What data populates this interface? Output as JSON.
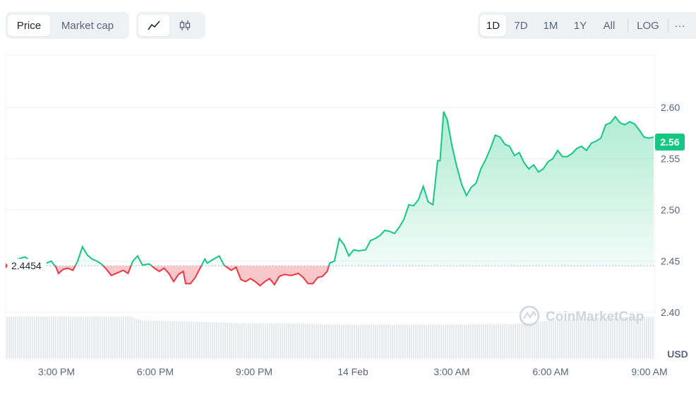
{
  "toolbar": {
    "metric_tabs": [
      {
        "label": "Price",
        "active": true
      },
      {
        "label": "Market cap",
        "active": false
      }
    ],
    "chart_types": [
      {
        "icon": "line-chart-icon",
        "active": true
      },
      {
        "icon": "candlestick-icon",
        "active": false
      }
    ],
    "ranges": [
      {
        "label": "1D",
        "active": true
      },
      {
        "label": "7D",
        "active": false
      },
      {
        "label": "1M",
        "active": false
      },
      {
        "label": "1Y",
        "active": false
      },
      {
        "label": "All",
        "active": false
      }
    ],
    "log_label": "LOG",
    "more_label": "···"
  },
  "watermark": "CoinMarketCap",
  "colors": {
    "up": "#16c784",
    "down": "#ea3943",
    "grid": "#eff2f5",
    "volume": "#e5e8ed"
  },
  "chart_data": {
    "type": "line",
    "currency_label": "USD",
    "baseline_value": 2.4454,
    "baseline_label": "2.4454",
    "current_value": 2.56,
    "current_label": "2.56",
    "ylim": [
      2.39,
      2.65
    ],
    "y_ticks": [
      "2.40",
      "2.45",
      "2.50",
      "2.55",
      "2.60"
    ],
    "x_tick_labels": [
      "3:00 PM",
      "6:00 PM",
      "9:00 PM",
      "14 Feb",
      "3:00 AM",
      "6:00 AM",
      "9:00 AM"
    ],
    "x_tick_hours": [
      3,
      6,
      9,
      12,
      15,
      18,
      21
    ],
    "x_range_hours": [
      1.6,
      22.5
    ],
    "series": [
      {
        "values": [
          [
            1.6,
            2.445
          ],
          [
            1.75,
            2.446
          ],
          [
            2.0,
            2.447
          ],
          [
            2.1,
            2.452
          ],
          [
            2.4,
            2.454
          ],
          [
            2.6,
            2.451
          ],
          [
            2.8,
            2.449
          ],
          [
            3.0,
            2.451
          ],
          [
            3.3,
            2.448
          ],
          [
            3.5,
            2.45
          ],
          [
            3.7,
            2.444
          ],
          [
            3.8,
            2.438
          ],
          [
            4.0,
            2.442
          ],
          [
            4.2,
            2.443
          ],
          [
            4.4,
            2.441
          ],
          [
            4.6,
            2.45
          ],
          [
            4.8,
            2.464
          ],
          [
            5.0,
            2.456
          ],
          [
            5.2,
            2.452
          ],
          [
            5.4,
            2.45
          ],
          [
            5.6,
            2.447
          ],
          [
            5.8,
            2.442
          ],
          [
            6.0,
            2.436
          ],
          [
            6.2,
            2.438
          ],
          [
            6.5,
            2.441
          ],
          [
            6.7,
            2.438
          ],
          [
            6.9,
            2.45
          ],
          [
            7.1,
            2.455
          ],
          [
            7.3,
            2.446
          ],
          [
            7.5,
            2.447
          ],
          [
            7.6,
            2.447
          ],
          [
            7.8,
            2.443
          ],
          [
            8.0,
            2.44
          ],
          [
            8.2,
            2.443
          ],
          [
            8.4,
            2.438
          ],
          [
            8.6,
            2.43
          ],
          [
            8.8,
            2.437
          ],
          [
            9.0,
            2.44
          ],
          [
            9.1,
            2.428
          ],
          [
            9.3,
            2.428
          ],
          [
            9.5,
            2.434
          ],
          [
            9.7,
            2.443
          ],
          [
            9.9,
            2.452
          ],
          [
            10.0,
            2.448
          ],
          [
            10.2,
            2.451
          ],
          [
            10.5,
            2.455
          ],
          [
            10.7,
            2.446
          ],
          [
            11.0,
            2.441
          ],
          [
            11.2,
            2.444
          ],
          [
            11.4,
            2.432
          ],
          [
            11.6,
            2.43
          ],
          [
            11.8,
            2.433
          ],
          [
            12.0,
            2.43
          ],
          [
            12.2,
            2.426
          ],
          [
            12.4,
            2.43
          ],
          [
            12.6,
            2.433
          ],
          [
            12.8,
            2.427
          ],
          [
            13.0,
            2.435
          ],
          [
            13.2,
            2.437
          ],
          [
            13.5,
            2.436
          ],
          [
            13.8,
            2.438
          ],
          [
            14.0,
            2.434
          ],
          [
            14.2,
            2.428
          ],
          [
            14.4,
            2.428
          ],
          [
            14.6,
            2.434
          ],
          [
            14.8,
            2.435
          ],
          [
            15.0,
            2.44
          ],
          [
            15.1,
            2.448
          ],
          [
            15.3,
            2.45
          ],
          [
            15.5,
            2.472
          ],
          [
            15.7,
            2.466
          ],
          [
            15.9,
            2.455
          ],
          [
            16.1,
            2.461
          ],
          [
            16.3,
            2.46
          ],
          [
            16.6,
            2.461
          ],
          [
            16.8,
            2.47
          ],
          [
            17.0,
            2.472
          ],
          [
            17.2,
            2.475
          ],
          [
            17.4,
            2.48
          ],
          [
            17.6,
            2.479
          ],
          [
            17.8,
            2.477
          ],
          [
            18.0,
            2.483
          ],
          [
            18.2,
            2.491
          ],
          [
            18.4,
            2.505
          ],
          [
            18.6,
            2.504
          ],
          [
            18.8,
            2.51
          ],
          [
            19.0,
            2.523
          ],
          [
            19.2,
            2.508
          ],
          [
            19.4,
            2.505
          ],
          [
            19.6,
            2.548
          ],
          [
            19.7,
            2.548
          ],
          [
            19.85,
            2.596
          ],
          [
            20.0,
            2.588
          ],
          [
            20.2,
            2.562
          ],
          [
            20.4,
            2.542
          ],
          [
            20.6,
            2.525
          ],
          [
            20.8,
            2.514
          ],
          [
            21.0,
            2.522
          ],
          [
            21.2,
            2.526
          ],
          [
            21.4,
            2.54
          ],
          [
            21.6,
            2.549
          ],
          [
            21.8,
            2.56
          ],
          [
            22.0,
            2.573
          ],
          [
            22.2,
            2.571
          ],
          [
            22.4,
            2.564
          ],
          [
            22.6,
            2.562
          ],
          [
            22.8,
            2.553
          ],
          [
            23.0,
            2.556
          ],
          [
            23.2,
            2.546
          ],
          [
            23.4,
            2.54
          ],
          [
            23.6,
            2.544
          ],
          [
            23.8,
            2.537
          ],
          [
            24.0,
            2.54
          ],
          [
            24.2,
            2.547
          ],
          [
            24.4,
            2.55
          ],
          [
            24.6,
            2.558
          ],
          [
            24.8,
            2.552
          ],
          [
            25.0,
            2.552
          ],
          [
            25.2,
            2.555
          ],
          [
            25.4,
            2.56
          ],
          [
            25.6,
            2.562
          ],
          [
            25.8,
            2.558
          ],
          [
            26.0,
            2.565
          ],
          [
            26.2,
            2.567
          ],
          [
            26.4,
            2.57
          ],
          [
            26.6,
            2.583
          ],
          [
            26.8,
            2.585
          ],
          [
            27.0,
            2.591
          ],
          [
            27.2,
            2.585
          ],
          [
            27.4,
            2.583
          ],
          [
            27.6,
            2.586
          ],
          [
            27.8,
            2.584
          ],
          [
            28.0,
            2.578
          ],
          [
            28.2,
            2.571
          ],
          [
            28.4,
            2.57
          ],
          [
            28.6,
            2.571
          ]
        ]
      }
    ],
    "volume_levels": [
      [
        1.6,
        0.95
      ],
      [
        4.0,
        0.95
      ],
      [
        5.6,
        0.95
      ],
      [
        6.0,
        0.86
      ],
      [
        7.5,
        0.84
      ],
      [
        9.0,
        0.8
      ],
      [
        10.5,
        0.8
      ],
      [
        12.0,
        0.77
      ],
      [
        14.0,
        0.77
      ],
      [
        16.0,
        0.77
      ],
      [
        18.0,
        0.78
      ],
      [
        19.0,
        0.85
      ],
      [
        20.5,
        0.92
      ],
      [
        22.5,
        0.95
      ]
    ]
  }
}
